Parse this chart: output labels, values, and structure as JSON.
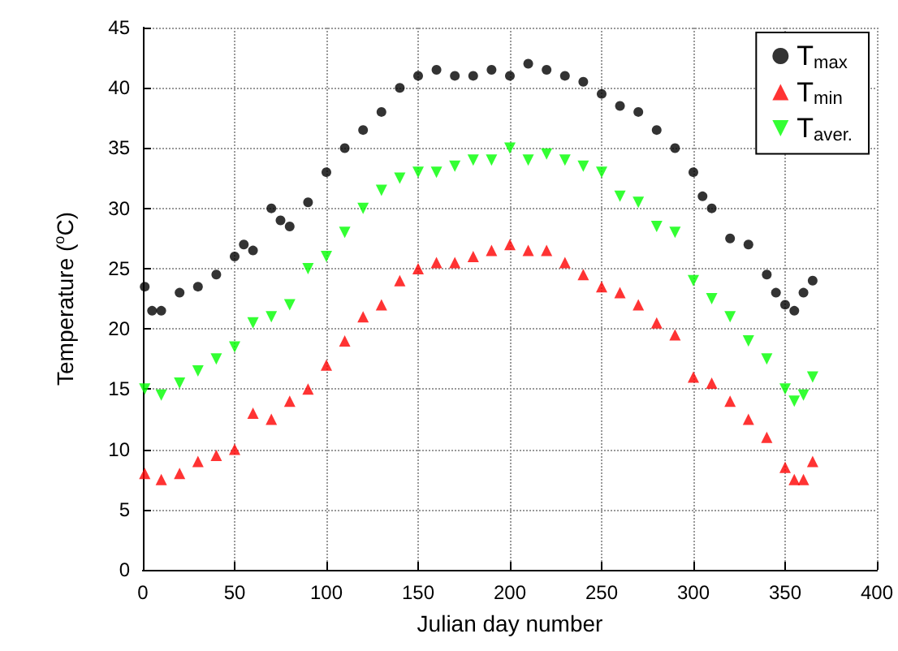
{
  "chart_data": {
    "type": "scatter",
    "xlabel": "Julian day number",
    "ylabel": "Temperature ($^{o}$C)",
    "xlim": [
      0,
      400
    ],
    "xticks": [
      0,
      50,
      100,
      150,
      200,
      250,
      300,
      350,
      400
    ],
    "ylim": [
      0,
      45
    ],
    "yticks": [
      0,
      5,
      10,
      15,
      20,
      25,
      30,
      35,
      40,
      45
    ],
    "grid": true,
    "legend": "top right",
    "series": [
      {
        "name": "T$_{max}$",
        "color": "#000000",
        "marker": "circle",
        "x": [
          1,
          5,
          10,
          20,
          30,
          40,
          50,
          55,
          60,
          70,
          75,
          80,
          90,
          100,
          110,
          120,
          130,
          140,
          150,
          160,
          170,
          180,
          190,
          200,
          210,
          220,
          230,
          240,
          250,
          260,
          270,
          280,
          290,
          300,
          305,
          310,
          320,
          330,
          340,
          345,
          350,
          355,
          360,
          365
        ],
        "values": [
          23.5,
          21.5,
          21.5,
          23,
          23.5,
          24.5,
          26,
          27,
          26.5,
          30,
          29,
          28.5,
          30.5,
          33,
          35,
          36.5,
          38,
          40,
          41,
          41.5,
          41,
          41,
          41.5,
          41,
          42,
          41.5,
          41,
          40.5,
          39.5,
          38.5,
          38,
          36.5,
          35,
          33,
          31,
          30,
          27.5,
          27,
          24.5,
          23,
          22,
          21.5,
          23,
          24
        ]
      },
      {
        "name": "T$_{min}$",
        "color": "#ff0000",
        "marker": "triangle",
        "x": [
          1,
          10,
          20,
          30,
          40,
          50,
          60,
          70,
          80,
          90,
          100,
          110,
          120,
          130,
          140,
          150,
          160,
          170,
          180,
          190,
          200,
          210,
          220,
          230,
          240,
          250,
          260,
          270,
          280,
          290,
          300,
          310,
          320,
          330,
          340,
          350,
          355,
          360,
          365
        ],
        "values": [
          8,
          7.5,
          8,
          9,
          9.5,
          10,
          13,
          12.5,
          14,
          15,
          17,
          19,
          21,
          22,
          24,
          25,
          25.5,
          25.5,
          26,
          26.5,
          27,
          26.5,
          26.5,
          25.5,
          24.5,
          23.5,
          23,
          22,
          20.5,
          19.5,
          16,
          15.5,
          14,
          12.5,
          11,
          8.5,
          7.5,
          7.5,
          9
        ]
      },
      {
        "name": "T$_{aver.}$",
        "color": "#00ff00",
        "marker": "triangle-down",
        "x": [
          1,
          10,
          20,
          30,
          40,
          50,
          60,
          70,
          80,
          90,
          100,
          110,
          120,
          130,
          140,
          150,
          160,
          170,
          180,
          190,
          200,
          210,
          220,
          230,
          240,
          250,
          260,
          270,
          280,
          290,
          300,
          310,
          320,
          330,
          340,
          350,
          355,
          360,
          365
        ],
        "values": [
          15,
          14.5,
          15.5,
          16.5,
          17.5,
          18.5,
          20.5,
          21,
          22,
          25,
          26,
          28,
          30,
          31.5,
          32.5,
          33,
          33,
          33.5,
          34,
          34,
          35,
          34,
          34.5,
          34,
          33.5,
          33,
          31,
          30.5,
          28.5,
          28,
          24,
          22.5,
          21,
          19,
          17.5,
          15,
          14,
          14.5,
          16
        ]
      }
    ]
  }
}
